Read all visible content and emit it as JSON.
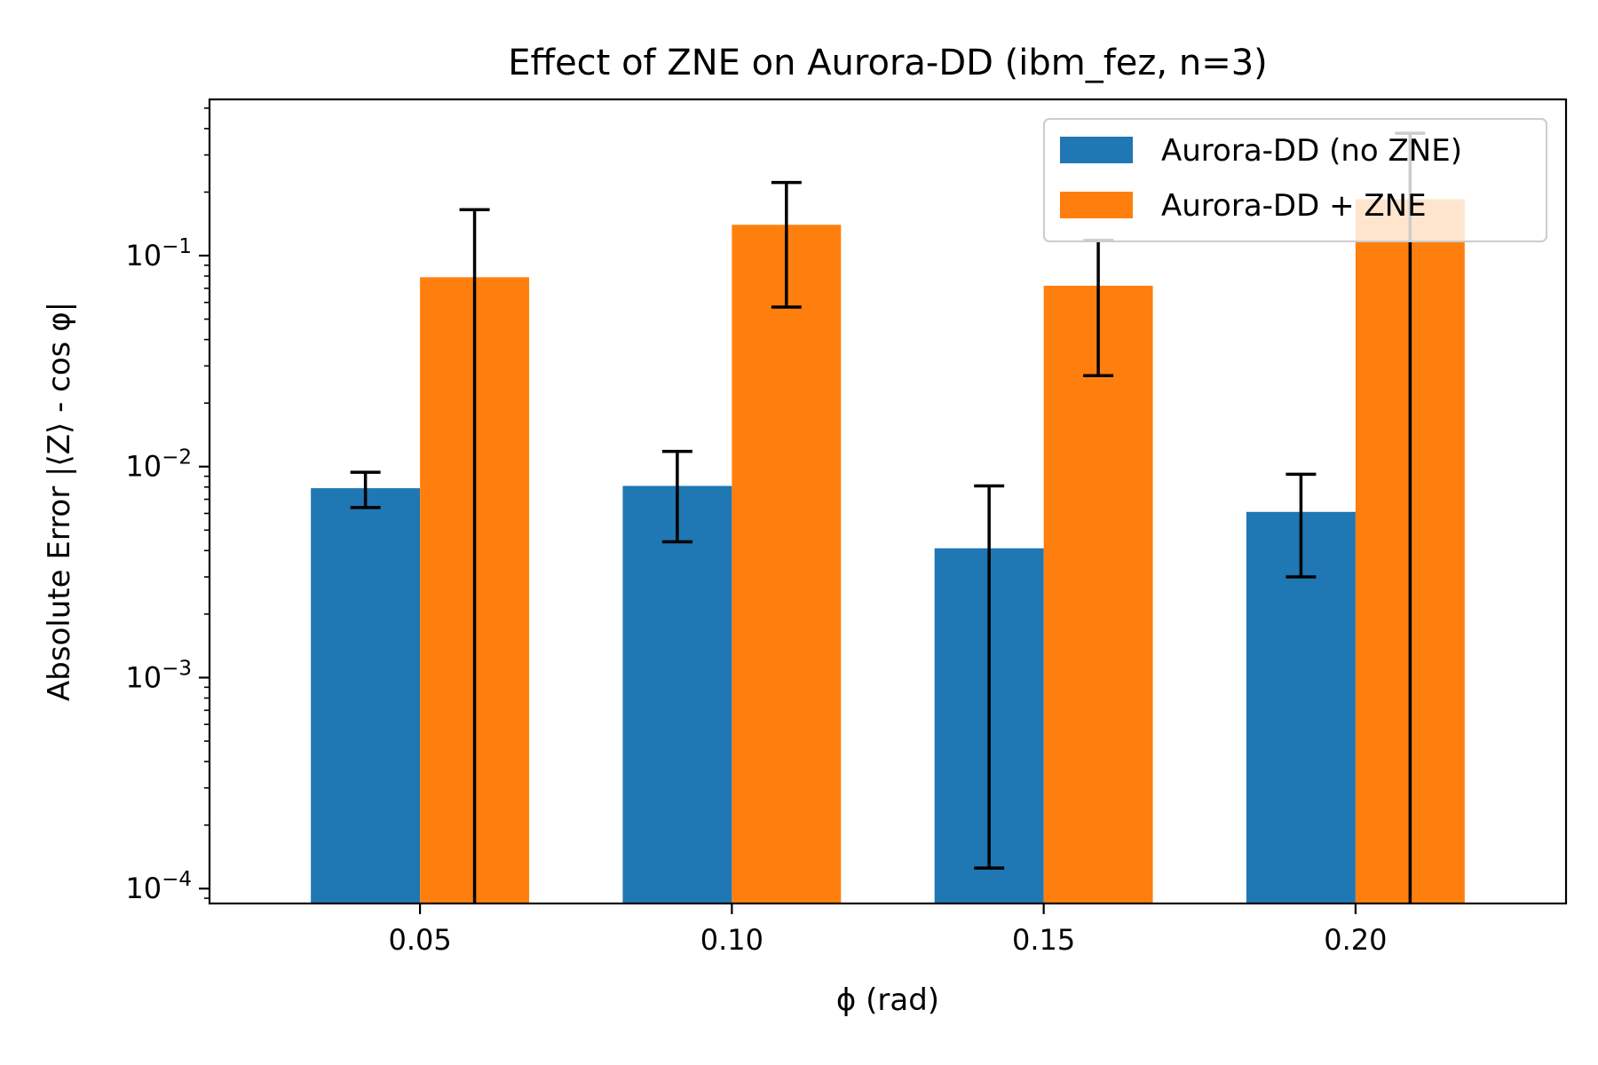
{
  "chart_data": {
    "type": "bar",
    "title": "Effect of ZNE on Aurora-DD (ibm_fez, n=3)",
    "xlabel": "ϕ (rad)",
    "ylabel": "Absolute Error |⟨Z⟩ - cos φ|",
    "yscale": "log",
    "ylim": [
      8.5e-05,
      0.55
    ],
    "categories": [
      "0.05",
      "0.10",
      "0.15",
      "0.20"
    ],
    "yticks": [
      {
        "value": 0.0001,
        "base": "10",
        "exp": "−4"
      },
      {
        "value": 0.001,
        "base": "10",
        "exp": "−3"
      },
      {
        "value": 0.01,
        "base": "10",
        "exp": "−2"
      },
      {
        "value": 0.1,
        "base": "10",
        "exp": "−1"
      }
    ],
    "legend_position": "top-right",
    "series": [
      {
        "name": "Aurora-DD (no ZNE)",
        "color": "#1f77b4",
        "values": [
          0.0079,
          0.0081,
          0.0041,
          0.0061
        ],
        "err_low": [
          0.0064,
          0.0044,
          0.000125,
          0.003
        ],
        "err_high": [
          0.0094,
          0.0118,
          0.0081,
          0.0092
        ]
      },
      {
        "name": "Aurora-DD + ZNE",
        "color": "#ff7f0e",
        "values": [
          0.079,
          0.14,
          0.072,
          0.185
        ],
        "err_low": [
          8.5e-05,
          0.057,
          0.027,
          8.5e-05
        ],
        "err_high": [
          0.165,
          0.222,
          0.118,
          0.38
        ]
      }
    ]
  }
}
